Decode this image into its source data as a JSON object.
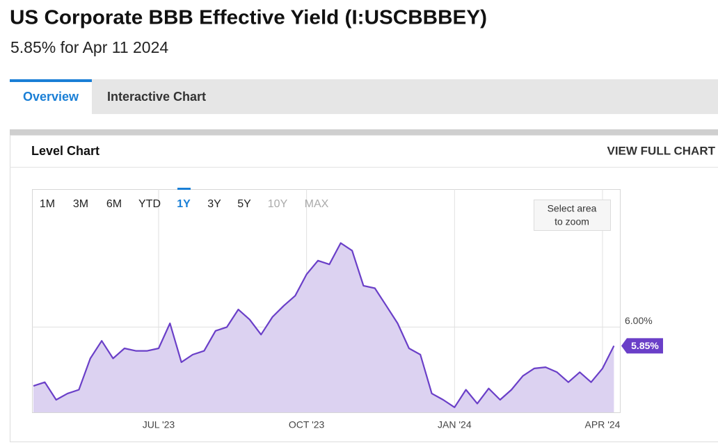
{
  "header": {
    "title": "US Corporate BBB Effective Yield (I:USCBBBEY)",
    "subtitle": "5.85% for Apr 11 2024"
  },
  "tabs": [
    "Overview",
    "Interactive Chart"
  ],
  "panel": {
    "title": "Level Chart",
    "link": "VIEW FULL CHART"
  },
  "range_buttons": [
    "1M",
    "3M",
    "6M",
    "YTD",
    "1Y",
    "3Y",
    "5Y",
    "10Y",
    "MAX"
  ],
  "zoom_hint": [
    "Select area",
    "to zoom"
  ],
  "chart_data": {
    "type": "area",
    "categories": [
      null,
      null,
      null,
      null,
      null,
      null,
      null,
      null,
      null,
      null,
      null,
      "JUL '23",
      null,
      null,
      null,
      null,
      null,
      null,
      null,
      null,
      null,
      null,
      null,
      null,
      "OCT '23",
      null,
      null,
      null,
      null,
      null,
      null,
      null,
      null,
      null,
      null,
      null,
      null,
      "JAN '24",
      null,
      null,
      null,
      null,
      null,
      null,
      null,
      null,
      null,
      null,
      null,
      null,
      "APR '24",
      null
    ],
    "series": [
      {
        "color": "#6a3fc8",
        "values": [
          5.53,
          5.56,
          5.42,
          5.47,
          5.5,
          5.75,
          5.89,
          5.75,
          5.83,
          5.81,
          5.81,
          5.83,
          6.03,
          5.72,
          5.78,
          5.81,
          5.97,
          6.0,
          6.14,
          6.06,
          5.94,
          6.08,
          6.17,
          6.25,
          6.42,
          6.53,
          6.5,
          6.67,
          6.61,
          6.33,
          6.31,
          6.17,
          6.03,
          5.83,
          5.78,
          5.47,
          5.42,
          5.36,
          5.5,
          5.39,
          5.51,
          5.42,
          5.5,
          5.61,
          5.67,
          5.68,
          5.64,
          5.56,
          5.64,
          5.56,
          5.67,
          5.85
        ],
        "value_labels": [
          null,
          null,
          null,
          null,
          null,
          null,
          null,
          null,
          null,
          null,
          null,
          null,
          null,
          null,
          null,
          null,
          null,
          null,
          null,
          null,
          null,
          null,
          null,
          null,
          null,
          null,
          null,
          null,
          null,
          null,
          null,
          null,
          null,
          null,
          null,
          null,
          null,
          null,
          null,
          null,
          null,
          null,
          null,
          null,
          null,
          null,
          null,
          null,
          null,
          null,
          null,
          "5.85%"
        ]
      }
    ],
    "ylim": [
      5.32,
      7.1
    ],
    "yticks": [
      {
        "value": 6,
        "label": "6.00%"
      }
    ],
    "grid": true,
    "fill_color": "#dcd2f1"
  }
}
